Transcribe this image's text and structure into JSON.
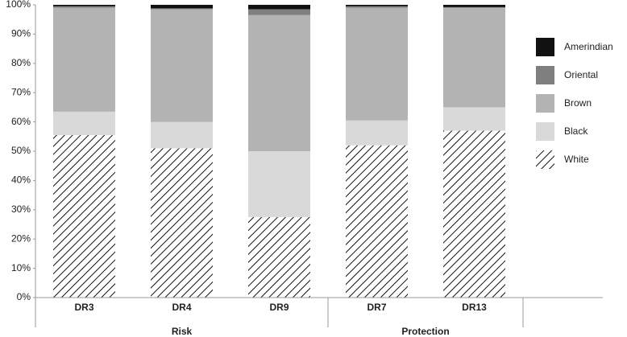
{
  "chart_data": {
    "type": "stacked_bar",
    "categories": [
      "DR3",
      "DR4",
      "DR9",
      "DR7",
      "DR13"
    ],
    "groups": [
      "Risk",
      "Protection"
    ],
    "series": [
      {
        "name": "White",
        "color": "#ffffff",
        "hatch": true,
        "values": [
          55.5,
          51,
          27.5,
          52,
          57
        ]
      },
      {
        "name": "Black",
        "color": "#d9d9d9",
        "values": [
          8,
          9,
          22.5,
          8.5,
          8
        ]
      },
      {
        "name": "Brown",
        "color": "#b3b3b3",
        "values": [
          35.5,
          38.5,
          46.5,
          38.5,
          34
        ]
      },
      {
        "name": "Oriental",
        "color": "#7f7f7f",
        "values": [
          0.5,
          0.3,
          2,
          0.5,
          0.2
        ]
      },
      {
        "name": "Amerindian",
        "color": "#111111",
        "values": [
          0.5,
          1.2,
          1.5,
          0.5,
          0.8
        ]
      }
    ],
    "ylim": [
      0,
      100
    ],
    "yticks": [
      {
        "value": 0,
        "label": "0%"
      },
      {
        "value": 10,
        "label": "10%"
      },
      {
        "value": 20,
        "label": "20%"
      },
      {
        "value": 30,
        "label": "30%"
      },
      {
        "value": 40,
        "label": "40%"
      },
      {
        "value": 50,
        "label": "50%"
      },
      {
        "value": 60,
        "label": "60%"
      },
      {
        "value": 70,
        "label": "70%"
      },
      {
        "value": 80,
        "label": "80%"
      },
      {
        "value": 90,
        "label": "90%"
      },
      {
        "value": 100,
        "label": "100%"
      }
    ],
    "legend": "right"
  }
}
